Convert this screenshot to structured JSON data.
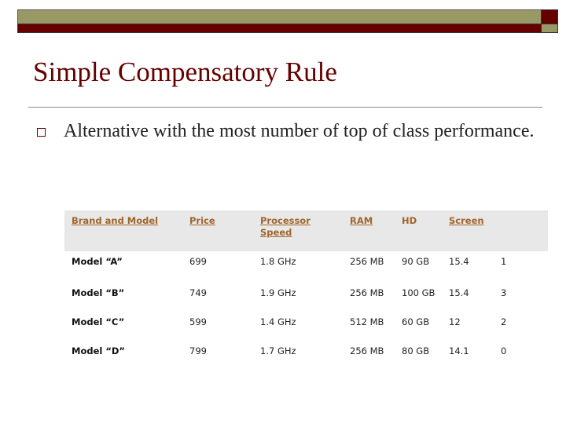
{
  "slide": {
    "title": "Simple Compensatory Rule",
    "bullet": "Alternative with the most number of top of class performance.",
    "colors": {
      "maroon": "#660000",
      "olive": "#999966"
    }
  },
  "table": {
    "headers": [
      "Brand and Model",
      "Price",
      "Processor Speed",
      "RAM",
      "HD",
      "Screen",
      ""
    ],
    "rows": [
      [
        "Model “A”",
        "699",
        "1.8 GHz",
        "256 MB",
        "90 GB",
        "15.4",
        "1"
      ],
      [
        "Model “B”",
        "749",
        "1.9 GHz",
        "256 MB",
        "100 GB",
        "15.4",
        "3"
      ],
      [
        "Model “C”",
        "599",
        "1.4 GHz",
        "512 MB",
        "60 GB",
        "12",
        "2"
      ],
      [
        "Model “D”",
        "799",
        "1.7 GHz",
        "256 MB",
        "80 GB",
        "14.1",
        "0"
      ]
    ]
  }
}
